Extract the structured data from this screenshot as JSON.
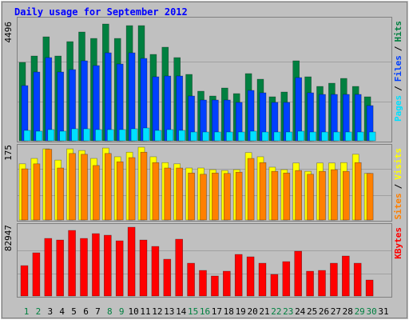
{
  "chart_data": [
    {
      "type": "bar",
      "title": "Daily usage for September 2012",
      "separator": "/",
      "ylim": [
        0,
        4496
      ],
      "yticks": [
        4496
      ],
      "series": [
        {
          "name": "Hits",
          "color": "#008040",
          "values": [
            3018,
            3264,
            4003,
            3264,
            3818,
            4188,
            3941,
            4496,
            3941,
            4434,
            4434,
            3326,
            3603,
            3203,
            2556,
            1909,
            1724,
            2032,
            1817,
            2587,
            2371,
            1694,
            1878,
            3079,
            2464,
            2094,
            2217,
            2402,
            2094,
            1694,
            null
          ]
        },
        {
          "name": "Files",
          "color": "#0040ff",
          "values": [
            2125,
            2648,
            3203,
            2648,
            2741,
            3079,
            2895,
            3387,
            2956,
            3387,
            3172,
            2464,
            2494,
            2494,
            1724,
            1571,
            1571,
            1571,
            1478,
            1940,
            1848,
            1478,
            1478,
            2433,
            1848,
            1786,
            1786,
            1786,
            1786,
            1355,
            null
          ]
        },
        {
          "name": "Pages",
          "color": "#00e0ff",
          "values": [
            400,
            370,
            431,
            370,
            462,
            462,
            431,
            431,
            431,
            462,
            493,
            400,
            431,
            400,
            339,
            339,
            339,
            339,
            339,
            370,
            339,
            339,
            339,
            370,
            339,
            339,
            339,
            339,
            339,
            339,
            null
          ]
        }
      ]
    },
    {
      "type": "bar",
      "separator": "/",
      "ylim": [
        0,
        175
      ],
      "yticks": [
        175
      ],
      "series": [
        {
          "name": "Visits",
          "color": "#ffff00",
          "values": [
            135,
            148,
            171,
            144,
            171,
            167,
            148,
            173,
            152,
            163,
            175,
            152,
            138,
            135,
            125,
            125,
            121,
            119,
            121,
            162,
            152,
            127,
            121,
            137,
            117,
            137,
            137,
            138,
            158,
            112,
            null
          ]
        },
        {
          "name": "Sites",
          "color": "#ff8000",
          "values": [
            123,
            135,
            170,
            125,
            160,
            158,
            131,
            160,
            140,
            150,
            163,
            138,
            125,
            125,
            113,
            110,
            113,
            112,
            115,
            148,
            138,
            117,
            113,
            119,
            110,
            117,
            121,
            117,
            138,
            112,
            null
          ]
        }
      ]
    },
    {
      "type": "bar",
      "ylim": [
        0,
        82947
      ],
      "yticks": [
        82947
      ],
      "categories": [
        "1",
        "2",
        "3",
        "4",
        "5",
        "6",
        "7",
        "8",
        "9",
        "10",
        "11",
        "12",
        "13",
        "14",
        "15",
        "16",
        "17",
        "18",
        "19",
        "20",
        "21",
        "22",
        "23",
        "24",
        "25",
        "26",
        "27",
        "28",
        "29",
        "30",
        "31"
      ],
      "category_label_colors": [
        "#008040",
        "#008040",
        "#000000",
        "#000000",
        "#000000",
        "#000000",
        "#000000",
        "#008040",
        "#008040",
        "#000000",
        "#000000",
        "#000000",
        "#000000",
        "#000000",
        "#008040",
        "#008040",
        "#000000",
        "#000000",
        "#000000",
        "#000000",
        "#000000",
        "#008040",
        "#008040",
        "#000000",
        "#000000",
        "#000000",
        "#000000",
        "#000000",
        "#008040",
        "#008040",
        "#000000"
      ],
      "series": [
        {
          "name": "KBytes",
          "color": "#ff0000",
          "values": [
            36651,
            52083,
            69444,
            67515,
            79089,
            69444,
            75231,
            73302,
            66551,
            82947,
            67515,
            59799,
            44367,
            68480,
            39545,
            30864,
            24113,
            29900,
            50154,
            47261,
            39545,
            26042,
            41474,
            54012,
            29900,
            30864,
            39545,
            48225,
            39545,
            19290,
            null
          ]
        }
      ]
    }
  ]
}
